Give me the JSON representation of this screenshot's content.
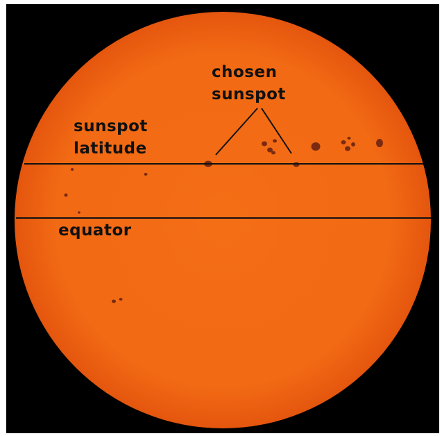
{
  "labels": {
    "chosen_line1": "chosen",
    "chosen_line2": "sunspot",
    "latitude_line1": "sunspot",
    "latitude_line2": "latitude",
    "equator": "equator"
  },
  "colors": {
    "background": "#000000",
    "sun_surface": "#f26a14",
    "sun_limb": "#e85a10",
    "sunspot": "#7a2a10",
    "line": "#111111"
  },
  "icons": [
    "sun-disk-image",
    "sunspot-marks"
  ]
}
